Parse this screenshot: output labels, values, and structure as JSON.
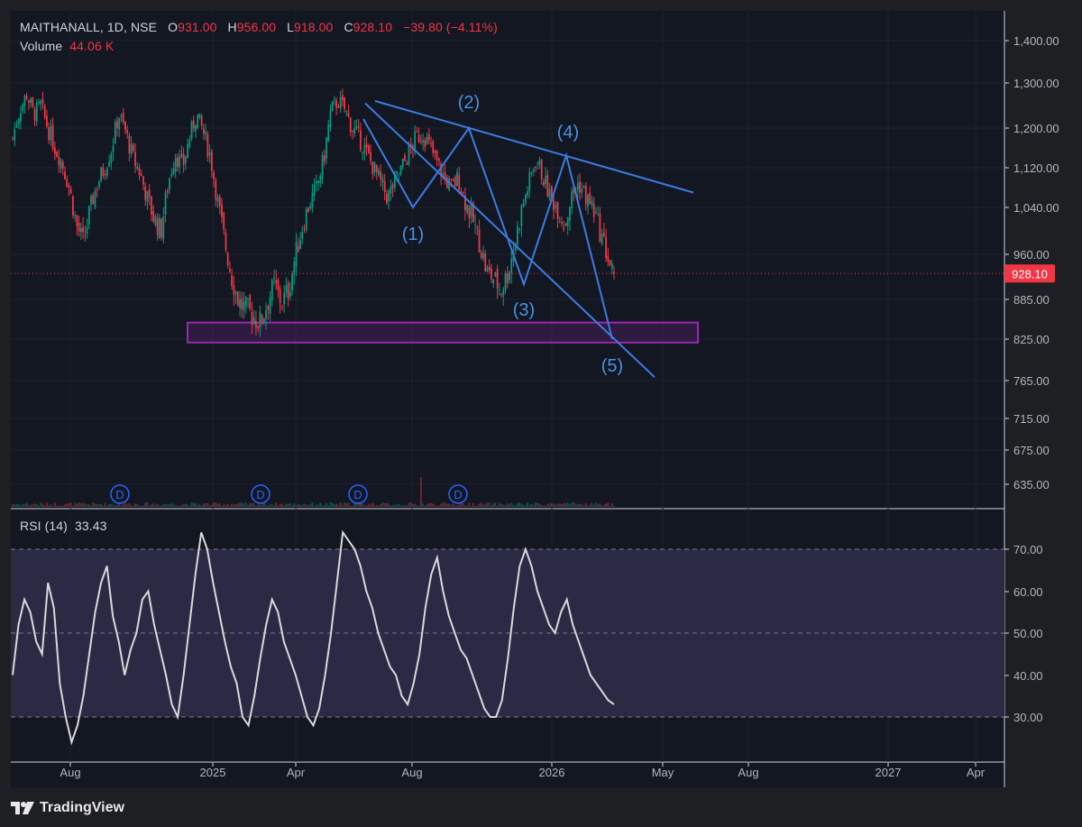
{
  "symbol": {
    "ticker_line": "MAITHANALL, 1D, NSE",
    "open_label": "O",
    "open": "931.00",
    "high_label": "H",
    "high": "956.00",
    "low_label": "L",
    "low": "918.00",
    "close_label": "C",
    "close": "928.10",
    "change": "−39.80 (−4.11%)"
  },
  "volume": {
    "label": "Volume",
    "value": "44.06 K"
  },
  "rsi": {
    "label": "RSI (14)",
    "value": "33.43"
  },
  "price_tag": "928.10",
  "brand": "TradingView",
  "colors": {
    "up": "#089981",
    "down": "#f23645",
    "pattern": "#3d7be0",
    "zone": "#9c27b0",
    "rsi_line": "#d9d9d9",
    "rsi_band": "#2a2a45",
    "background": "#131722",
    "frame": "#1e1f22",
    "axis_text": "#b2b5be"
  },
  "chart_data": [
    {
      "type": "candlestick",
      "ylim": [
        600,
        1420
      ],
      "y_ticks": [
        "1,400.00",
        "1,300.00",
        "1,200.00",
        "1,120.00",
        "1,040.00",
        "960.00",
        "885.00",
        "825.00",
        "765.00",
        "715.00",
        "675.00",
        "635.00"
      ],
      "x_ticks": [
        "Aug",
        "2025",
        "Apr",
        "Aug",
        "2026",
        "May",
        "Aug",
        "2027",
        "Apr"
      ],
      "current_price": 928.1,
      "dividend_markers": [
        "D",
        "D",
        "D",
        "D"
      ],
      "wave_labels": [
        "(1)",
        "(2)",
        "(3)",
        "(4)",
        "(5)"
      ],
      "wave_points": [
        [
          1220,
          "pivot"
        ],
        [
          1040,
          "(1)"
        ],
        [
          1200,
          "(2)"
        ],
        [
          910,
          "(3)"
        ],
        [
          1145,
          "(4)"
        ],
        [
          825,
          "(5)"
        ]
      ],
      "trendline_upper": [
        [
          1260,
          "start"
        ],
        [
          1070,
          "end"
        ]
      ],
      "trendline_lower": [
        [
          1255,
          "start"
        ],
        [
          770,
          "end"
        ]
      ],
      "support_zone": [
        820,
        850
      ],
      "price_path": [
        1180,
        1240,
        1275,
        1230,
        1250,
        1200,
        1160,
        1130,
        1080,
        1010,
        980,
        1040,
        1090,
        1120,
        1160,
        1230,
        1190,
        1140,
        1110,
        1060,
        1020,
        1000,
        1090,
        1150,
        1120,
        1180,
        1230,
        1190,
        1140,
        1050,
        980,
        920,
        880,
        870,
        860,
        850,
        880,
        910,
        880,
        900,
        960,
        1010,
        1050,
        1080,
        1140,
        1240,
        1260,
        1240,
        1200,
        1180,
        1150,
        1120,
        1090,
        1060,
        1090,
        1120,
        1150,
        1180,
        1190,
        1160,
        1130,
        1100,
        1080,
        1100,
        1050,
        1020,
        980,
        930,
        920,
        900,
        930,
        980,
        1040,
        1090,
        1140,
        1100,
        1060,
        1040,
        1010,
        1060,
        1090,
        1060,
        1040,
        1000,
        960,
        920
      ]
    },
    {
      "type": "line",
      "series": [
        {
          "name": "RSI (14)"
        }
      ],
      "ylim": [
        20,
        78
      ],
      "y_ticks": [
        "70.00",
        "60.00",
        "50.00",
        "40.00",
        "30.00"
      ],
      "levels": [
        70,
        50,
        30
      ],
      "values": [
        40,
        52,
        58,
        55,
        48,
        45,
        62,
        56,
        38,
        30,
        24,
        28,
        35,
        45,
        55,
        62,
        66,
        54,
        48,
        40,
        46,
        50,
        58,
        60,
        52,
        46,
        40,
        33,
        30,
        40,
        52,
        64,
        74,
        70,
        62,
        55,
        48,
        42,
        38,
        30,
        28,
        35,
        44,
        52,
        58,
        55,
        48,
        44,
        40,
        35,
        30,
        28,
        32,
        40,
        50,
        62,
        74,
        72,
        70,
        66,
        60,
        56,
        50,
        46,
        42,
        40,
        35,
        33,
        38,
        45,
        56,
        64,
        68,
        60,
        54,
        50,
        46,
        44,
        40,
        36,
        32,
        30,
        30,
        34,
        44,
        56,
        66,
        70,
        66,
        60,
        56,
        52,
        50,
        55,
        58,
        52,
        48,
        44,
        40,
        38,
        36,
        34,
        33
      ]
    }
  ]
}
